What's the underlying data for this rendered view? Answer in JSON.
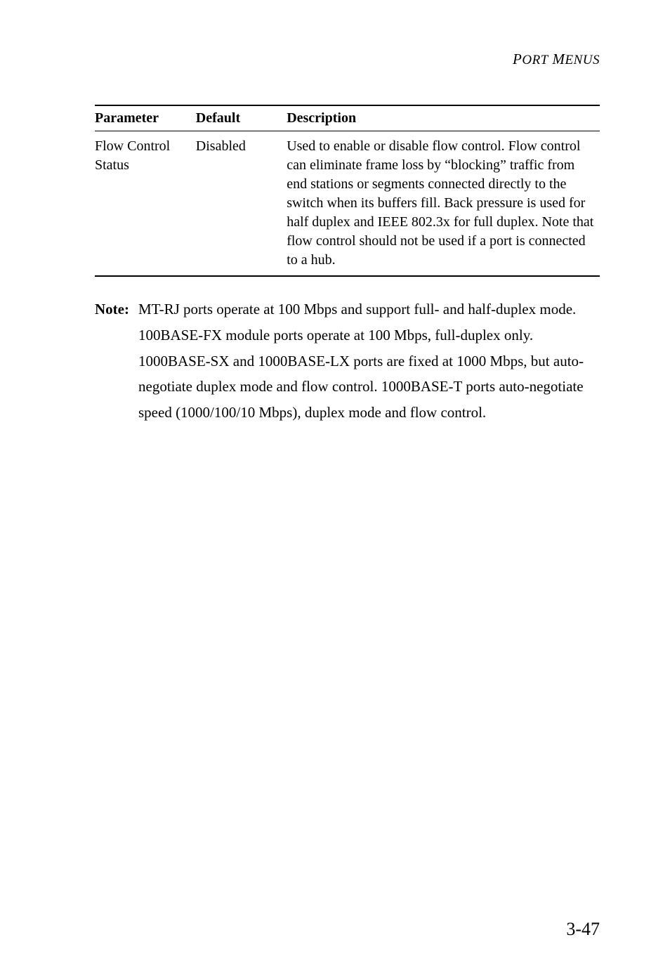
{
  "running_header": {
    "text_large": "P",
    "text_small1": "ORT",
    "text_large2": " M",
    "text_small2": "ENUS"
  },
  "table": {
    "headers": [
      "Parameter",
      "Default",
      "Description"
    ],
    "rows": [
      {
        "parameter": "Flow Control Status",
        "default": "Disabled",
        "description": "Used to enable or disable flow control. Flow control can eliminate frame loss by “blocking” traffic from end stations or segments connected directly to the switch when its buffers fill. Back pressure is used for half duplex and IEEE 802.3x for full duplex. Note that flow control should not be used if a port is connected to a hub."
      }
    ],
    "header_fontsize": 20,
    "cell_fontsize": 20,
    "border_top_width": 2,
    "border_mid_width": 1,
    "border_bottom_width": 2,
    "border_color": "#000000"
  },
  "note": {
    "label": "Note:",
    "body": "MT-RJ ports operate at 100 Mbps and support full- and half-duplex mode. 100BASE-FX module ports operate at 100 Mbps, full-duplex only. 1000BASE-SX and 1000BASE-LX ports are fixed at 1000 Mbps, but auto-negotiate duplex mode and flow control. 1000BASE-T ports auto-negotiate speed (1000/100/10 Mbps), duplex mode and flow control."
  },
  "page_number": "3-47",
  "colors": {
    "background": "#ffffff",
    "text": "#000000",
    "border": "#000000"
  },
  "typography": {
    "body_font": "Garamond, Georgia, Times New Roman, serif",
    "body_fontsize": 21,
    "header_fontsize": 21,
    "page_number_fontsize": 26
  }
}
